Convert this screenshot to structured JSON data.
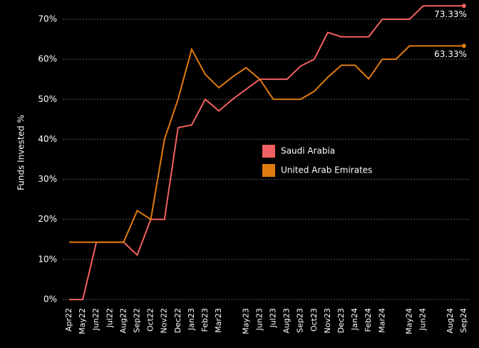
{
  "chart_data": {
    "type": "line",
    "y_label": "Funds Invested %",
    "categories": [
      "Apr22",
      "May22",
      "Jun22",
      "Jul22",
      "Aug22",
      "Sep22",
      "Oct22",
      "Nov22",
      "Dec22",
      "Jan23",
      "Feb23",
      "Mar23",
      null,
      "May23",
      "Jun23",
      "Jul23",
      "Aug23",
      "Sep23",
      "Oct23",
      "Nov23",
      "Dec23",
      "Jan24",
      "Feb24",
      "Mar24",
      null,
      "May24",
      "Jun24",
      null,
      "Aug24",
      "Sep24"
    ],
    "series": [
      {
        "name": "Saudi Arabia",
        "color": "#f26161",
        "values": [
          0,
          0,
          14.3,
          14.3,
          14.3,
          11.1,
          20,
          20,
          42.9,
          43.6,
          50,
          47.1,
          50,
          52.5,
          55,
          55,
          55,
          58.3,
          60,
          66.7,
          65.6,
          65.6,
          65.6,
          70,
          70,
          70,
          73.33,
          73.33,
          73.33,
          73.33
        ],
        "end_label": "73.33%"
      },
      {
        "name": "United Arab Emirates",
        "color": "#e07b10",
        "values": [
          14.3,
          14.3,
          14.3,
          14.3,
          14.3,
          22.2,
          20,
          40,
          50,
          62.5,
          56.2,
          52.9,
          55.6,
          57.9,
          55,
          50,
          50,
          50,
          52,
          55.5,
          58.5,
          58.5,
          55.1,
          60,
          60,
          63.33,
          63.33,
          63.33,
          63.33,
          63.33
        ],
        "end_label": "63.33%"
      }
    ],
    "ylim": [
      -2,
      74.5
    ],
    "yticks": [
      {
        "value": 0,
        "label": "0%"
      },
      {
        "value": 10,
        "label": "10%"
      },
      {
        "value": 20,
        "label": "20%"
      },
      {
        "value": 30,
        "label": "30%"
      },
      {
        "value": 40,
        "label": "40%"
      },
      {
        "value": 50,
        "label": "50%"
      },
      {
        "value": 60,
        "label": "60%"
      },
      {
        "value": 70,
        "label": "70%"
      }
    ],
    "grid": true
  }
}
